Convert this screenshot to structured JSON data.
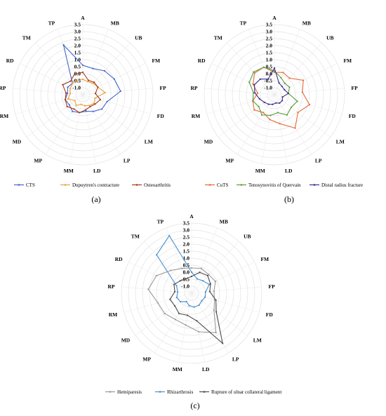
{
  "chart_data": [
    {
      "type": "radar",
      "panel_label": "(a)",
      "axes": [
        "A",
        "MB",
        "UB",
        "FM",
        "FP",
        "FD",
        "LM",
        "LP",
        "LD",
        "MM",
        "MP",
        "MD",
        "RM",
        "RP",
        "RD",
        "TM",
        "TP"
      ],
      "ticks": [
        "3.5",
        "3.0",
        "2.5",
        "2.0",
        "1.5",
        "1.0",
        "0.5",
        "0.0",
        "-0.5",
        "-1.0"
      ],
      "rlim": [
        -1.5,
        3.5
      ],
      "grid": true,
      "legend_position": "bottom",
      "series": [
        {
          "name": "CTS",
          "color": "#4466cc",
          "values": [
            0.6,
            0.5,
            0.8,
            1.0,
            1.2,
            0.3,
            0.2,
            -0.1,
            -0.3,
            -0.2,
            -0.1,
            -0.3,
            -0.2,
            -0.4,
            -0.3,
            -0.4,
            2.3
          ]
        },
        {
          "name": "Dupuytren's contracture",
          "color": "#e8a33d",
          "values": [
            -0.4,
            -0.5,
            -0.4,
            -0.3,
            0.1,
            -0.6,
            -0.5,
            -0.6,
            -0.7,
            -0.8,
            -0.6,
            -0.8,
            -0.4,
            -0.6,
            -0.5,
            -0.4,
            -0.4
          ]
        },
        {
          "name": "Osteoarthritis",
          "color": "#a63a1f",
          "values": [
            0.1,
            -0.4,
            -0.3,
            -0.3,
            -0.6,
            -0.2,
            -0.4,
            -0.5,
            -0.4,
            -0.2,
            -0.3,
            -0.1,
            -0.2,
            -0.3,
            0.1,
            -0.2,
            0.1
          ]
        }
      ]
    },
    {
      "type": "radar",
      "panel_label": "(b)",
      "axes": [
        "A",
        "MB",
        "UB",
        "FM",
        "FP",
        "FD",
        "LM",
        "LP",
        "LD",
        "MM",
        "MP",
        "MD",
        "RM",
        "RP",
        "RD",
        "TM",
        "TP"
      ],
      "ticks": [
        "3.5",
        "3.0",
        "2.5",
        "2.0",
        "1.5",
        "1.0",
        "0.5",
        "0.0",
        "-0.5",
        "-1.0"
      ],
      "rlim": [
        -1.5,
        3.5
      ],
      "grid": true,
      "legend_position": "bottom",
      "series": [
        {
          "name": "CuTS",
          "color": "#e26b3a",
          "values": [
            0.1,
            0.2,
            0.1,
            0.8,
            0.5,
            1.1,
            0.6,
            1.3,
            0.6,
            0.3,
            0.0,
            0.3,
            0.1,
            -0.3,
            0.2,
            0.6,
            0.6
          ]
        },
        {
          "name": "Tenosynovitis of Quervain",
          "color": "#5a9e3a",
          "values": [
            0.2,
            -0.2,
            -0.4,
            -0.3,
            -0.5,
            0.2,
            0.0,
            0.2,
            -0.2,
            0.0,
            0.2,
            -0.1,
            0.1,
            0.0,
            0.5,
            0.7,
            0.6
          ]
        },
        {
          "name": "Distal radius fracture",
          "color": "#3b2f8a",
          "values": [
            0.4,
            -0.6,
            -0.7,
            -0.7,
            -0.5,
            -0.9,
            -0.8,
            -0.8,
            -0.9,
            -0.8,
            -0.7,
            -0.6,
            -0.4,
            -0.1,
            0.1,
            0.0,
            -0.3
          ]
        }
      ]
    },
    {
      "type": "radar",
      "panel_label": "(c)",
      "axes": [
        "A",
        "MB",
        "UB",
        "FM",
        "FP",
        "FD",
        "LM",
        "LP",
        "LD",
        "MM",
        "MP",
        "MD",
        "RM",
        "RP",
        "RD",
        "TM",
        "TP"
      ],
      "ticks": [
        "3.5",
        "3.0",
        "2.5",
        "2.0",
        "1.5",
        "1.0",
        "0.5",
        "0.0",
        "-0.5",
        "-1.0"
      ],
      "rlim": [
        -1.5,
        3.5
      ],
      "grid": true,
      "legend_position": "bottom",
      "series": [
        {
          "name": "Hemiparesis",
          "color": "#9a9a9a",
          "values": [
            0.3,
            0.4,
            0.3,
            0.4,
            0.1,
            0.2,
            0.5,
            1.8,
            1.3,
            0.8,
            0.7,
            0.9,
            1.0,
            1.6,
            1.3,
            0.7,
            0.4
          ]
        },
        {
          "name": "Rhizarthrosis",
          "color": "#4a8fd0",
          "values": [
            0.0,
            -0.4,
            -0.3,
            -0.1,
            -0.5,
            -0.5,
            -0.6,
            -0.5,
            -0.5,
            -0.6,
            -0.8,
            -0.5,
            -0.4,
            -0.5,
            -0.3,
            2.2,
            2.9
          ]
        },
        {
          "name": "Rupture of ulnar collateral ligament",
          "color": "#4d4d4d",
          "values": [
            -0.3,
            0.1,
            0.2,
            0.0,
            -0.2,
            0.3,
            0.7,
            2.7,
            0.5,
            0.1,
            0.2,
            0.0,
            0.1,
            -0.3,
            -0.1,
            -0.3,
            -0.4
          ]
        }
      ]
    }
  ]
}
